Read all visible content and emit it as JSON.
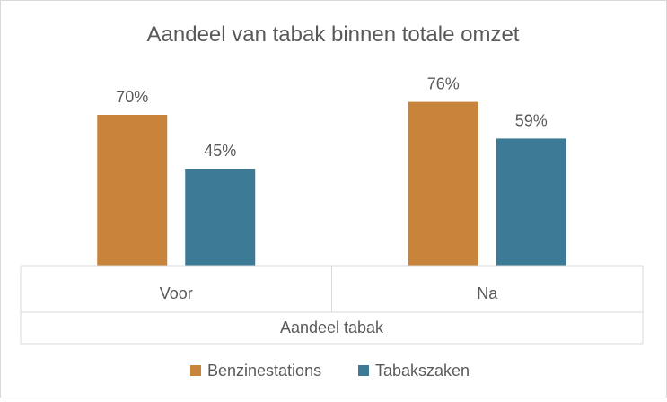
{
  "chart_data": {
    "type": "bar",
    "title": "Aandeel van tabak binnen totale omzet",
    "categories": [
      "Voor",
      "Na"
    ],
    "category_group_label": "Aandeel tabak",
    "series": [
      {
        "name": "Benzinestations",
        "values": [
          70,
          76
        ],
        "labels": [
          "70%",
          "76%"
        ],
        "color": "#C8843A"
      },
      {
        "name": "Tabakszaken",
        "values": [
          45,
          59
        ],
        "labels": [
          "45%",
          "59%"
        ],
        "color": "#3D7A96"
      }
    ],
    "ylim": [
      0,
      100
    ],
    "grid": false,
    "legend": "bottom"
  }
}
